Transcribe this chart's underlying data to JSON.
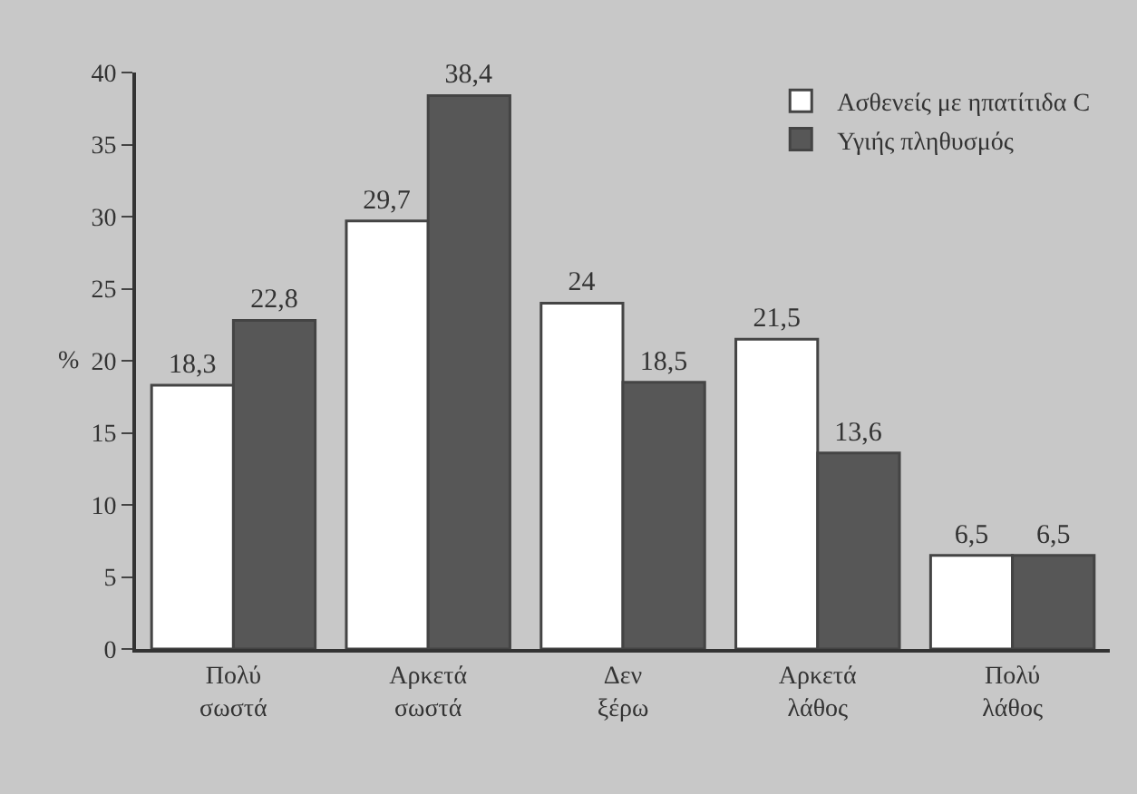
{
  "chart_data": {
    "type": "bar",
    "ylabel": "%",
    "categories": [
      "Πολύ σωστά",
      "Αρκετά σωστά",
      "Δεν ξέρω",
      "Αρκετά λάθος",
      "Πολύ λάθος"
    ],
    "series": [
      {
        "name": "Ασθενείς με ηπατίτιδα C",
        "color": "#ffffff",
        "values": [
          18.3,
          29.7,
          24,
          21.5,
          6.5
        ],
        "value_labels": [
          "18,3",
          "29,7",
          "24",
          "21,5",
          "6,5"
        ]
      },
      {
        "name": "Υγιής πληθυσμός",
        "color": "#575757",
        "values": [
          22.8,
          38.4,
          18.5,
          13.6,
          6.5
        ],
        "value_labels": [
          "22,8",
          "38,4",
          "18,5",
          "13,6",
          "6,5"
        ]
      }
    ],
    "ylim": [
      0,
      40
    ],
    "yticks": [
      0,
      5,
      10,
      15,
      20,
      25,
      30,
      35,
      40
    ],
    "grid": false,
    "legend": "top right"
  }
}
